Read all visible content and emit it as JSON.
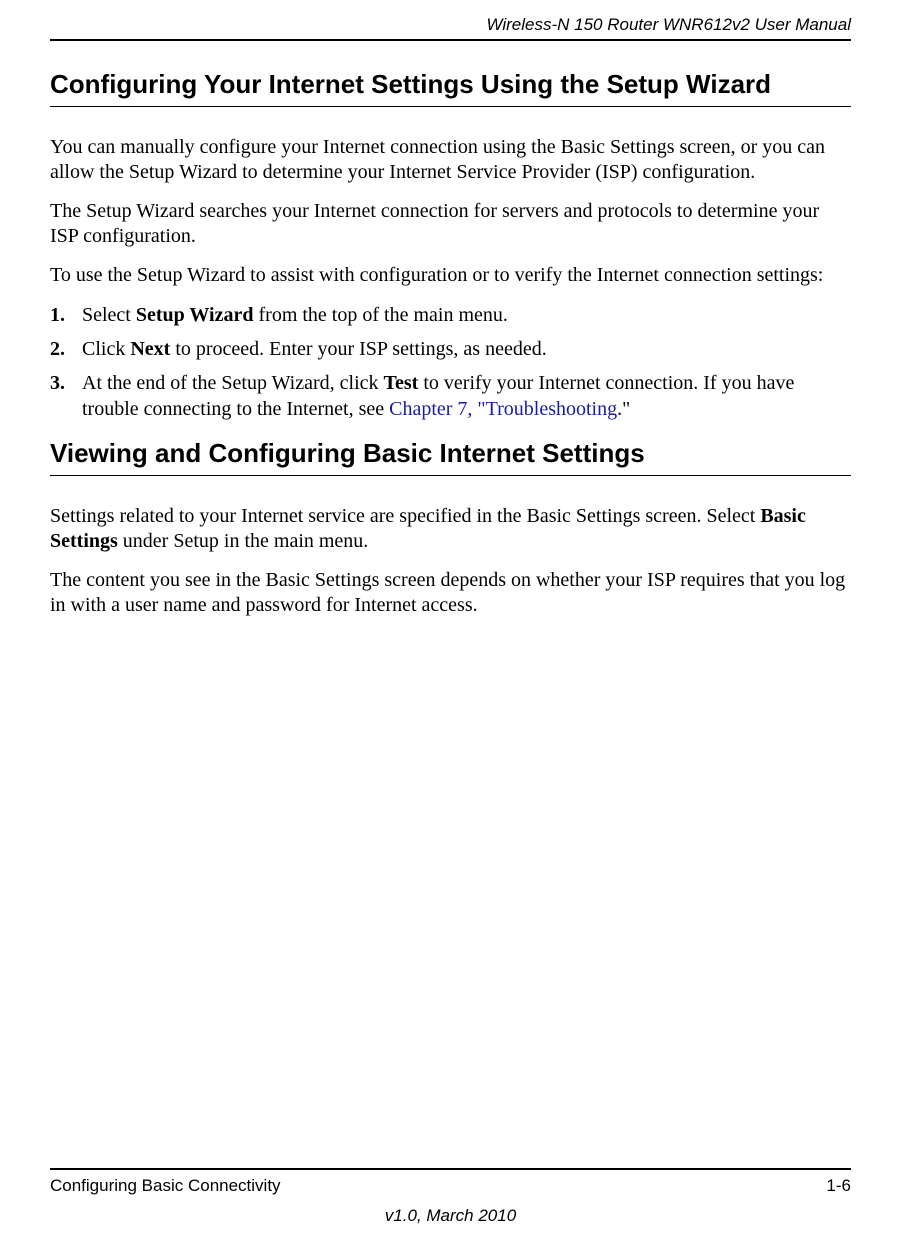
{
  "header": {
    "title": "Wireless-N 150 Router WNR612v2 User Manual"
  },
  "section1": {
    "heading": "Configuring Your Internet Settings Using the Setup Wizard",
    "p1": "You can manually configure your Internet connection using the Basic Settings screen, or you can allow the Setup Wizard to determine your Internet Service Provider (ISP) configuration.",
    "p2": "The Setup Wizard searches your Internet connection for servers and protocols to determine your ISP configuration.",
    "p3": "To use the Setup Wizard to assist with configuration or to verify the Internet connection settings:",
    "steps": [
      {
        "num": "1.",
        "pre": "Select ",
        "bold": "Setup Wizard",
        "post": " from the top of the main menu."
      },
      {
        "num": "2.",
        "pre": "Click ",
        "bold": "Next",
        "post": " to proceed. Enter your ISP settings, as needed."
      },
      {
        "num": "3.",
        "pre": "At the end of the Setup Wizard, click ",
        "bold": "Test",
        "post1": " to verify your Internet connection. If you have trouble connecting to the Internet, see ",
        "link": "Chapter 7, \"Troubleshooting",
        "post2": ".\""
      }
    ]
  },
  "section2": {
    "heading": "Viewing and Configuring Basic Internet Settings",
    "p1_pre": "Settings related to your Internet service are specified in the Basic Settings screen. Select ",
    "p1_bold": "Basic Settings",
    "p1_post": " under Setup in the main menu.",
    "p2": "The content you see in the Basic Settings screen depends on whether your ISP requires that you log in with a user name and password for Internet access."
  },
  "footer": {
    "left": "Configuring Basic Connectivity",
    "right": "1-6",
    "version": "v1.0, March 2010"
  },
  "colors": {
    "text": "#000000",
    "link": "#1a1aa8",
    "background": "#ffffff"
  }
}
